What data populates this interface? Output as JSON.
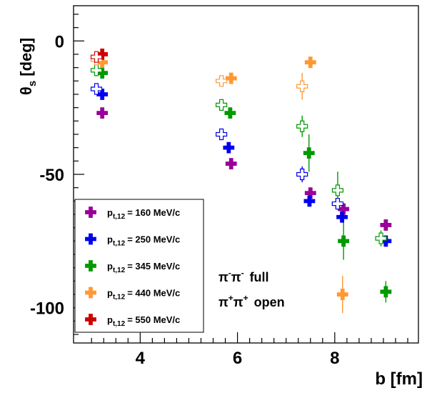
{
  "chart_data": {
    "type": "scatter",
    "xlabel": "b [fm]",
    "ylabel": "θs [deg]",
    "xlim": [
      2.63,
      9.72
    ],
    "ylim": [
      -113.2,
      13.2
    ],
    "x_ticks": [
      "4",
      "6",
      "8"
    ],
    "y_ticks": [
      "0",
      "-50",
      "-100"
    ],
    "grid": false,
    "legend_position": "lower-left",
    "colors": {
      "160": "#990099",
      "250": "#0000ee",
      "345": "#009900",
      "440": "#ff9933",
      "550": "#cc0000"
    },
    "legend": [
      {
        "p_label": "p",
        "subscript": "t,12",
        "value_label": "= 160 MeV/c",
        "color": "#990099"
      },
      {
        "p_label": "p",
        "subscript": "t,12",
        "value_label": "= 250 MeV/c",
        "color": "#0000ee"
      },
      {
        "p_label": "p",
        "subscript": "t,12",
        "value_label": "= 345 MeV/c",
        "color": "#009900"
      },
      {
        "p_label": "p",
        "subscript": "t,12",
        "value_label": "= 440 MeV/c",
        "color": "#ff9933"
      },
      {
        "p_label": "p",
        "subscript": "t,12",
        "value_label": "= 550 MeV/c",
        "color": "#cc0000"
      }
    ],
    "annotations": [
      {
        "particle": "π",
        "charge": "-",
        "particle2": "π",
        "charge2": "-",
        "label": "full"
      },
      {
        "particle": "π",
        "charge": "+",
        "particle2": "π",
        "charge2": "+",
        "label": "open"
      }
    ],
    "series": [
      {
        "name": "π−π− p_t,12 = 160 MeV/c",
        "color": "#990099",
        "marker": "filled",
        "points": [
          {
            "x": 3.22,
            "y": -27
          },
          {
            "x": 5.87,
            "y": -46
          },
          {
            "x": 7.5,
            "y": -57
          },
          {
            "x": 8.18,
            "y": -63
          },
          {
            "x": 9.05,
            "y": -69
          }
        ]
      },
      {
        "name": "π−π− p_t,12 = 250 MeV/c",
        "color": "#0000ee",
        "marker": "filled",
        "points": [
          {
            "x": 3.22,
            "y": -20
          },
          {
            "x": 5.82,
            "y": -40
          },
          {
            "x": 7.48,
            "y": -60
          },
          {
            "x": 8.15,
            "y": -66
          },
          {
            "x": 9.05,
            "y": -75
          }
        ]
      },
      {
        "name": "π−π− p_t,12 = 345 MeV/c",
        "color": "#009900",
        "marker": "filled",
        "points": [
          {
            "x": 3.22,
            "y": -12
          },
          {
            "x": 5.85,
            "y": -27
          },
          {
            "x": 7.47,
            "y": -42,
            "yerr": 7
          },
          {
            "x": 8.18,
            "y": -75,
            "yerr": 7
          },
          {
            "x": 9.05,
            "y": -94,
            "yerr": 4
          }
        ]
      },
      {
        "name": "π−π− p_t,12 = 440 MeV/c",
        "color": "#ff9933",
        "marker": "filled",
        "points": [
          {
            "x": 3.22,
            "y": -8
          },
          {
            "x": 5.87,
            "y": -14
          },
          {
            "x": 7.5,
            "y": -8,
            "yerr": 2
          },
          {
            "x": 8.16,
            "y": -95,
            "yerr": 7
          }
        ]
      },
      {
        "name": "π−π− p_t,12 = 550 MeV/c",
        "color": "#cc0000",
        "marker": "filled",
        "points": [
          {
            "x": 3.22,
            "y": -5
          }
        ]
      },
      {
        "name": "π+π+ p_t,12 = 160 MeV/c",
        "color": "#990099",
        "marker": "open",
        "points": [
          {
            "x": 8.06,
            "y": -61
          }
        ]
      },
      {
        "name": "π+π+ p_t,12 = 250 MeV/c",
        "color": "#0000ee",
        "marker": "open",
        "points": [
          {
            "x": 3.1,
            "y": -18
          },
          {
            "x": 5.67,
            "y": -35
          },
          {
            "x": 7.33,
            "y": -50,
            "yerr": 3
          },
          {
            "x": 8.06,
            "y": -61
          }
        ]
      },
      {
        "name": "π+π+ p_t,12 = 345 MeV/c",
        "color": "#009900",
        "marker": "open",
        "points": [
          {
            "x": 3.1,
            "y": -11
          },
          {
            "x": 5.67,
            "y": -24
          },
          {
            "x": 7.33,
            "y": -32,
            "yerr": 4
          },
          {
            "x": 8.06,
            "y": -56,
            "yerr": 7
          },
          {
            "x": 8.95,
            "y": -74,
            "yerr": 3
          }
        ]
      },
      {
        "name": "π+π+ p_t,12 = 440 MeV/c",
        "color": "#ff9933",
        "marker": "open",
        "points": [
          {
            "x": 3.1,
            "y": -7
          },
          {
            "x": 5.67,
            "y": -15
          },
          {
            "x": 7.33,
            "y": -17,
            "yerr": 5
          }
        ]
      },
      {
        "name": "π+π+ p_t,12 = 550 MeV/c",
        "color": "#cc0000",
        "marker": "open",
        "points": [
          {
            "x": 3.1,
            "y": -6
          }
        ]
      }
    ]
  }
}
